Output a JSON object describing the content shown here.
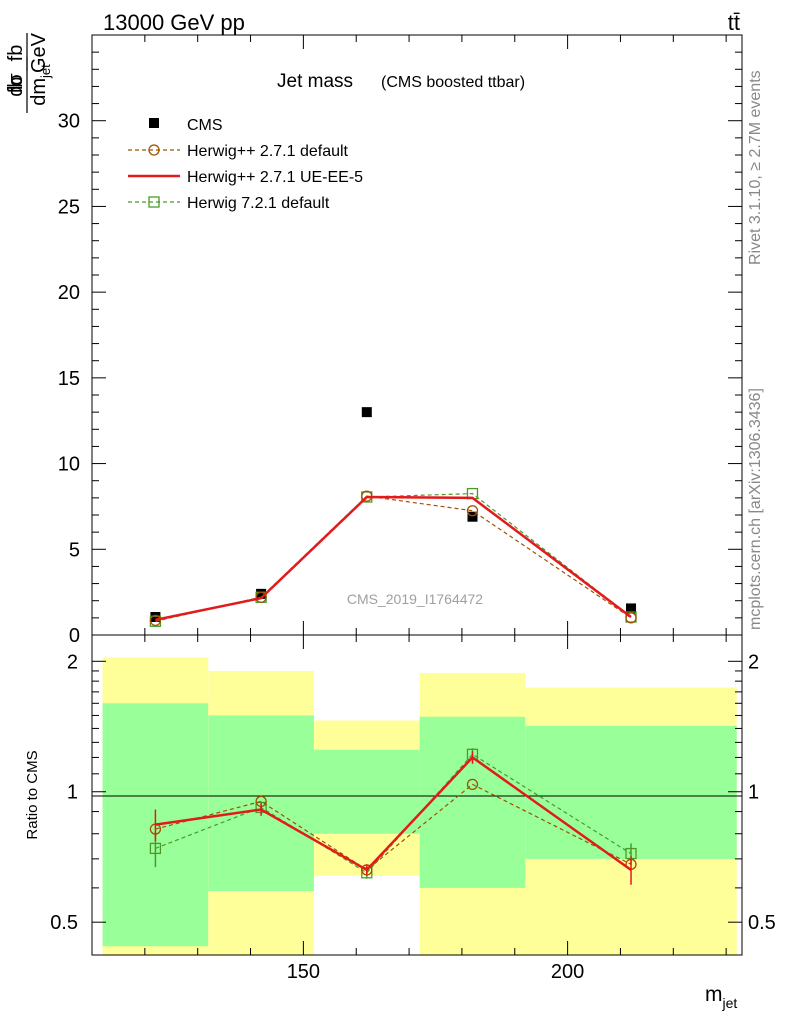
{
  "header": {
    "energy_label": "13000 GeV pp",
    "process_label": "tt̄"
  },
  "chart_data": {
    "type": "line",
    "title": "Jet mass",
    "subtitle": "(CMS boosted ttbar)",
    "ylabel_num": "dσ",
    "ylabel_den": "dm",
    "ylabel_den_sub": "jet",
    "yunit_num": "fb",
    "yunit_den": "GeV",
    "xlabel": "m",
    "xlabel_sub": "jet",
    "ratio_ylabel": "Ratio to CMS",
    "analysis_id": "CMS_2019_I1764472",
    "side_label_top": "Rivet 3.1.10, ≥ 2.7M events",
    "side_label_bottom": "mcplots.cern.ch [arXiv:1306.3436]",
    "xlim": [
      110,
      233
    ],
    "ylim": [
      0,
      35
    ],
    "ratio_ylim": [
      0.42,
      2.3
    ],
    "ratio_log": true,
    "x_ticks": [
      "150",
      "200"
    ],
    "y_ticks": [
      "0",
      "5",
      "10",
      "15",
      "20",
      "25",
      "30"
    ],
    "ratio_ticks": [
      "0.5",
      "1",
      "2"
    ],
    "legend_position": "top-left",
    "bins": [
      [
        112,
        132
      ],
      [
        132,
        152
      ],
      [
        152,
        172
      ],
      [
        172,
        192
      ],
      [
        192,
        232
      ]
    ],
    "x": [
      122,
      142,
      162,
      182,
      212
    ],
    "band_inner": [
      [
        0.44,
        1.6
      ],
      [
        0.59,
        1.5
      ],
      [
        0.8,
        1.25
      ],
      [
        0.6,
        1.49
      ],
      [
        0.7,
        1.42
      ]
    ],
    "band_outer": [
      [
        0.42,
        2.04
      ],
      [
        0.42,
        1.9
      ],
      [
        0.64,
        1.46
      ],
      [
        0.42,
        1.88
      ],
      [
        0.42,
        1.74
      ]
    ],
    "series": [
      {
        "name": "CMS",
        "style": "data",
        "color": "#000000",
        "values": [
          1.05,
          2.4,
          13.0,
          6.9,
          1.55
        ]
      },
      {
        "name": "Herwig++ 2.7.1 default",
        "style": "circle-dashed",
        "color": "#a05000",
        "values": [
          0.85,
          2.2,
          8.1,
          7.25,
          1.0
        ],
        "ratio": [
          0.82,
          0.95,
          0.66,
          1.04,
          0.68
        ],
        "ratio_err": [
          0.0,
          0.0,
          0.0,
          0.0,
          0.0
        ]
      },
      {
        "name": "Herwig++ 2.7.1 UE-EE-5",
        "style": "solid",
        "color": "#e31a1c",
        "values": [
          0.88,
          2.15,
          8.05,
          8.0,
          1.05
        ],
        "ratio": [
          0.84,
          0.91,
          0.66,
          1.2,
          0.66
        ],
        "ratio_err": [
          0.07,
          0.03,
          0.02,
          0.04,
          0.05
        ]
      },
      {
        "name": "Herwig 7.2.1 default",
        "style": "square-dashed",
        "color": "#4a9a2a",
        "values": [
          0.8,
          2.2,
          8.05,
          8.25,
          1.05
        ],
        "ratio": [
          0.74,
          0.92,
          0.65,
          1.22,
          0.72
        ],
        "ratio_err": [
          0.07,
          0.03,
          0.02,
          0.04,
          0.04
        ]
      }
    ],
    "colors": {
      "band_inner": "#99ff99",
      "band_outer": "#ffff99"
    }
  }
}
